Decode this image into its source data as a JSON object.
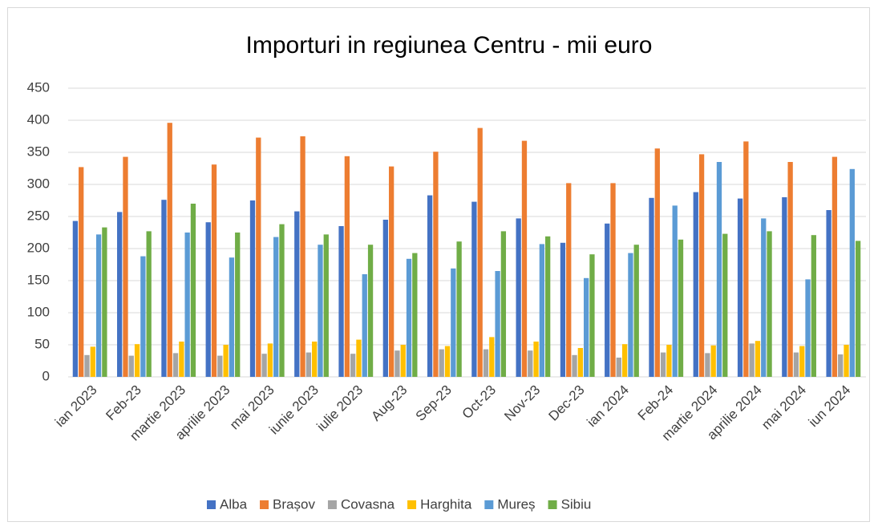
{
  "chart_data": {
    "type": "bar",
    "title": "Importuri in regiunea Centru - mii euro",
    "categories": [
      "ian 2023",
      "Feb-23",
      "martie 2023",
      "aprilie 2023",
      "mai 2023",
      "iunie 2023",
      "iulie 2023",
      "Aug-23",
      "Sep-23",
      "Oct-23",
      "Nov-23",
      "Dec-23",
      "ian 2024",
      "Feb-24",
      "martie 2024",
      "aprilie 2024",
      "mai 2024",
      "iun 2024"
    ],
    "series": [
      {
        "name": "Alba",
        "color": "#4472c4",
        "values": [
          243,
          257,
          276,
          241,
          275,
          258,
          235,
          245,
          283,
          273,
          247,
          209,
          239,
          279,
          288,
          278,
          280,
          260
        ]
      },
      {
        "name": "Brașov",
        "color": "#ed7d31",
        "values": [
          327,
          343,
          396,
          331,
          373,
          375,
          344,
          328,
          351,
          388,
          368,
          302,
          302,
          356,
          347,
          367,
          335,
          343
        ]
      },
      {
        "name": "Covasna",
        "color": "#a5a5a5",
        "values": [
          34,
          33,
          37,
          33,
          36,
          38,
          36,
          41,
          43,
          43,
          41,
          34,
          30,
          38,
          37,
          52,
          38,
          35
        ]
      },
      {
        "name": "Harghita",
        "color": "#ffc000",
        "values": [
          47,
          51,
          55,
          50,
          52,
          55,
          58,
          50,
          48,
          62,
          55,
          45,
          51,
          50,
          49,
          56,
          48,
          50
        ]
      },
      {
        "name": "Mureș",
        "color": "#5b9bd5",
        "values": [
          222,
          188,
          225,
          186,
          218,
          206,
          160,
          184,
          169,
          165,
          207,
          154,
          193,
          267,
          335,
          247,
          152,
          324
        ]
      },
      {
        "name": "Sibiu",
        "color": "#70ad47",
        "values": [
          233,
          227,
          270,
          225,
          238,
          222,
          206,
          193,
          211,
          227,
          219,
          191,
          206,
          214,
          223,
          227,
          221,
          212
        ]
      }
    ],
    "ylim": [
      0,
      450
    ],
    "yticks": [
      0,
      50,
      100,
      150,
      200,
      250,
      300,
      350,
      400,
      450
    ],
    "grid": true,
    "legend": "bottom"
  }
}
